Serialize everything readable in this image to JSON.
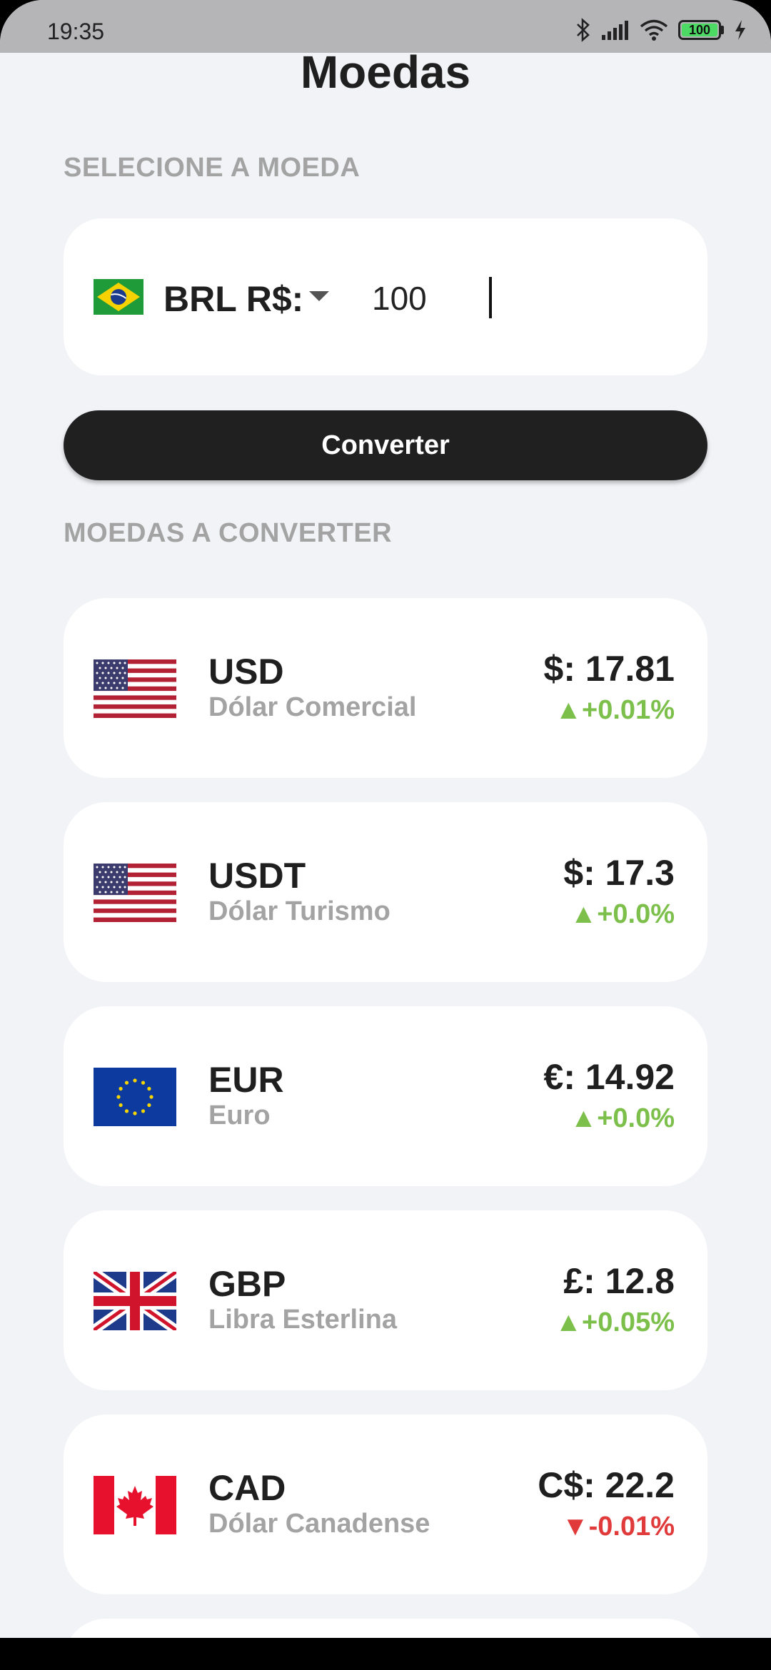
{
  "status": {
    "time": "19:35",
    "battery": "100"
  },
  "title": "Moedas",
  "select_label": "SELECIONE A MOEDA",
  "selector": {
    "currency": "BRL R$:",
    "amount": "100"
  },
  "convert_label": "Converter",
  "list_label": "MOEDAS A CONVERTER",
  "colors": {
    "up": "#7cc04b",
    "down": "#e03a3a",
    "button": "#202020",
    "background": "#f2f3f7"
  },
  "rates": [
    {
      "code": "USD",
      "name": "Dólar Comercial",
      "value": "$: 17.81",
      "change": "▲+0.01%",
      "direction": "up",
      "flag": "us-flag-icon"
    },
    {
      "code": "USDT",
      "name": "Dólar Turismo",
      "value": "$: 17.3",
      "change": "▲+0.0%",
      "direction": "up",
      "flag": "us-flag-icon"
    },
    {
      "code": "EUR",
      "name": "Euro",
      "value": "€: 14.92",
      "change": "▲+0.0%",
      "direction": "up",
      "flag": "eu-flag-icon"
    },
    {
      "code": "GBP",
      "name": "Libra Esterlina",
      "value": "£: 12.8",
      "change": "▲+0.05%",
      "direction": "up",
      "flag": "uk-flag-icon"
    },
    {
      "code": "CAD",
      "name": "Dólar Canadense",
      "value": "C$: 22.2",
      "change": "▼-0.01%",
      "direction": "down",
      "flag": "canada-flag-icon"
    }
  ]
}
